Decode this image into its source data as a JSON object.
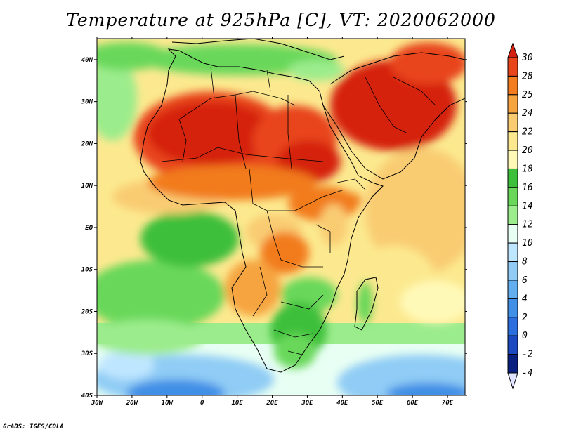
{
  "title": "Temperature at 925hPa [C], VT: 2020062000",
  "credit": "GrADS: IGES/COLA",
  "map": {
    "lon_range": [
      -30,
      75
    ],
    "lat_range": [
      -40,
      45
    ],
    "lon_ticks": [
      "30W",
      "20W",
      "10W",
      "0",
      "10E",
      "20E",
      "30E",
      "40E",
      "50E",
      "60E",
      "70E"
    ],
    "lat_ticks": [
      "40N",
      "30N",
      "20N",
      "10N",
      "EQ",
      "10S",
      "20S",
      "30S",
      "40S"
    ],
    "features": [
      "temperature-field",
      "country-borders",
      "coastlines"
    ]
  },
  "colorbar": {
    "labels": [
      "30",
      "28",
      "25",
      "24",
      "22",
      "20",
      "18",
      "16",
      "14",
      "12",
      "10",
      "8",
      "6",
      "4",
      "2",
      "0",
      "-2",
      "-4"
    ],
    "colors": [
      "#d52010",
      "#e8451a",
      "#f27c1e",
      "#f6a440",
      "#f9cc72",
      "#fce98f",
      "#fff9b8",
      "#3cbf3a",
      "#69d85a",
      "#9bec8c",
      "#e8fff4",
      "#bfe6ff",
      "#90ccf5",
      "#62aeee",
      "#3f8fe6",
      "#2b6ede",
      "#1c48c0",
      "#0a2080",
      "#e0e4ff"
    ]
  }
}
